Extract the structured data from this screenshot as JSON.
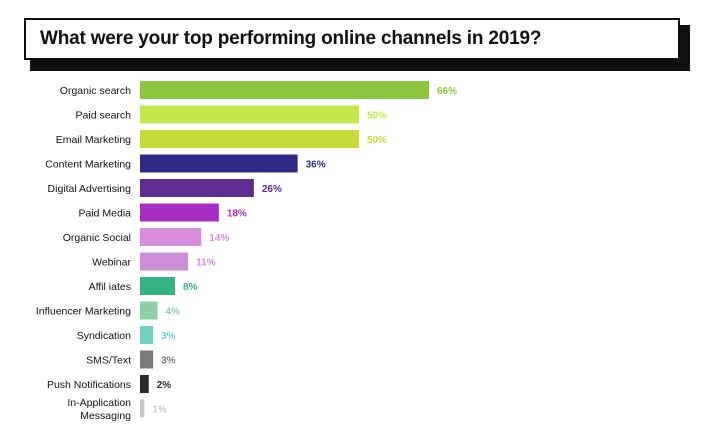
{
  "title": "What were your top performing online channels in 2019?",
  "chart_data": {
    "type": "bar",
    "orientation": "horizontal",
    "title": "What were your top performing online channels in 2019?",
    "xlabel": "",
    "ylabel": "",
    "xlim": [
      0,
      66
    ],
    "grid": false,
    "legend": "none",
    "value_suffix": "%",
    "categories": [
      [
        "Organic search"
      ],
      [
        "Paid search"
      ],
      [
        "Email Marketing"
      ],
      [
        "Content Marketing"
      ],
      [
        "Digital Advertising"
      ],
      [
        "Paid Media"
      ],
      [
        "Organic Social"
      ],
      [
        "Webinar"
      ],
      [
        "Affil iates"
      ],
      [
        "Influencer Marketing"
      ],
      [
        "Syndication"
      ],
      [
        "SMS/Text"
      ],
      [
        "Push Notifications"
      ],
      [
        "In-Application",
        "Messaging"
      ]
    ],
    "values": [
      66,
      50,
      50,
      36,
      26,
      18,
      14,
      11,
      8,
      4,
      3,
      3,
      2,
      1
    ],
    "labels": [
      "66%",
      "50%",
      "50%",
      "36%",
      "26%",
      "18%",
      "14%",
      "11%",
      "8%",
      "4%",
      "3%",
      "3%",
      "2%",
      "1%"
    ],
    "colors": [
      "#8cc63f",
      "#c4e84a",
      "#c6da3a",
      "#2e2a86",
      "#5b2d8f",
      "#a62cc4",
      "#d78cdc",
      "#cf8fd8",
      "#34b383",
      "#8ccfaa",
      "#6fd1c0",
      "#7a7a7a",
      "#2b2b2b",
      "#c8c8c8"
    ],
    "label_colors": [
      "#8cc63f",
      "#c4e84a",
      "#c6da3a",
      "#2e2a86",
      "#5b2d8f",
      "#a62cc4",
      "#d78cdc",
      "#cf8fd8",
      "#34b383",
      "#8ccfaa",
      "#6fd1c0",
      "#7a7a7a",
      "#2b2b2b",
      "#c8c8c8"
    ]
  }
}
